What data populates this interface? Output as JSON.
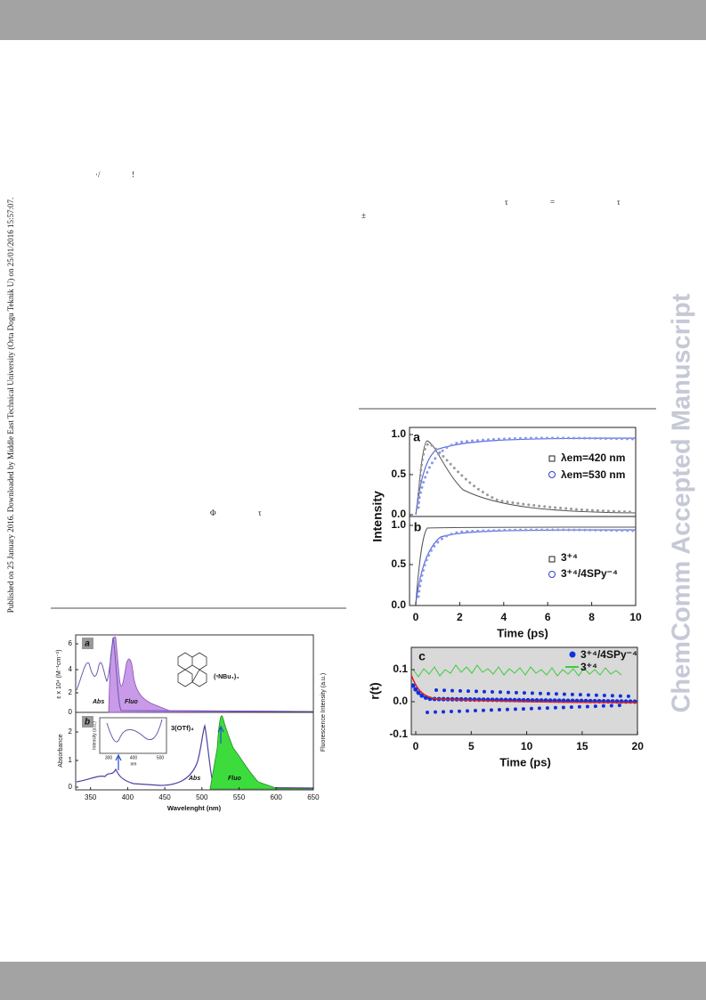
{
  "side_note": "Published on 25 January 2016. Downloaded by Middle East Technical University (Orta Dogu Teknik U) on 25/01/2016 15:57:07.",
  "watermark": "ChemComm Accepted Manuscript",
  "text_fragments": [
    "·/",
    "!",
    "τ",
    "=",
    "τ",
    "±",
    "Φ",
    "τ"
  ],
  "figure_left": {
    "panel_a": "a",
    "panel_b": "b",
    "abs_a": "Abs",
    "fluo_a": "Fluo",
    "abs_b": "Abs",
    "fluo_b": "Fluo",
    "counterion": "(ⁿNBu₄)₄",
    "compound": "3(OTf)₄",
    "y_label_a": "ε x 10⁴ (M⁻¹cm⁻¹)",
    "y_label_b": "Absorbance",
    "y2_label": "Fluorescence Intensity (a.u.)",
    "x_label": "Wavelenght (nm)",
    "xticks": [
      "350",
      "400",
      "450",
      "500",
      "550",
      "600",
      "650"
    ],
    "yticks_a": [
      "0",
      "2",
      "4",
      "6"
    ],
    "yticks_b": [
      "0",
      "1",
      "2"
    ],
    "inset_y_label": "Intensity (a.u.)",
    "inset_x_label": "nm",
    "inset_xticks": [
      "300",
      "400",
      "500"
    ]
  },
  "figure_right": {
    "panel_a": "a",
    "panel_b": "b",
    "panel_c": "c",
    "legend_a": [
      "λem=420 nm",
      "λem=530 nm"
    ],
    "legend_b": [
      "3⁺⁴",
      "3⁺⁴/4SPy⁻⁴"
    ],
    "legend_c": [
      "3⁺⁴/4SPy⁻⁴",
      "3⁺⁴"
    ],
    "y_label": "Intensity",
    "yticks_a": [
      "0.0",
      "0.5",
      "1.0"
    ],
    "yticks_b": [
      "0.0",
      "0.5",
      "1.0"
    ],
    "xticks_ab": [
      "0",
      "2",
      "4",
      "6",
      "8",
      "10"
    ],
    "x_label_ab": "Time (ps)",
    "y_label_c": "r(t)",
    "yticks_c": [
      "0.1",
      "0.0",
      "-0.1"
    ],
    "xticks_c": [
      "0",
      "5",
      "10",
      "15",
      "20"
    ],
    "x_label_c": "Time (ps)"
  }
}
